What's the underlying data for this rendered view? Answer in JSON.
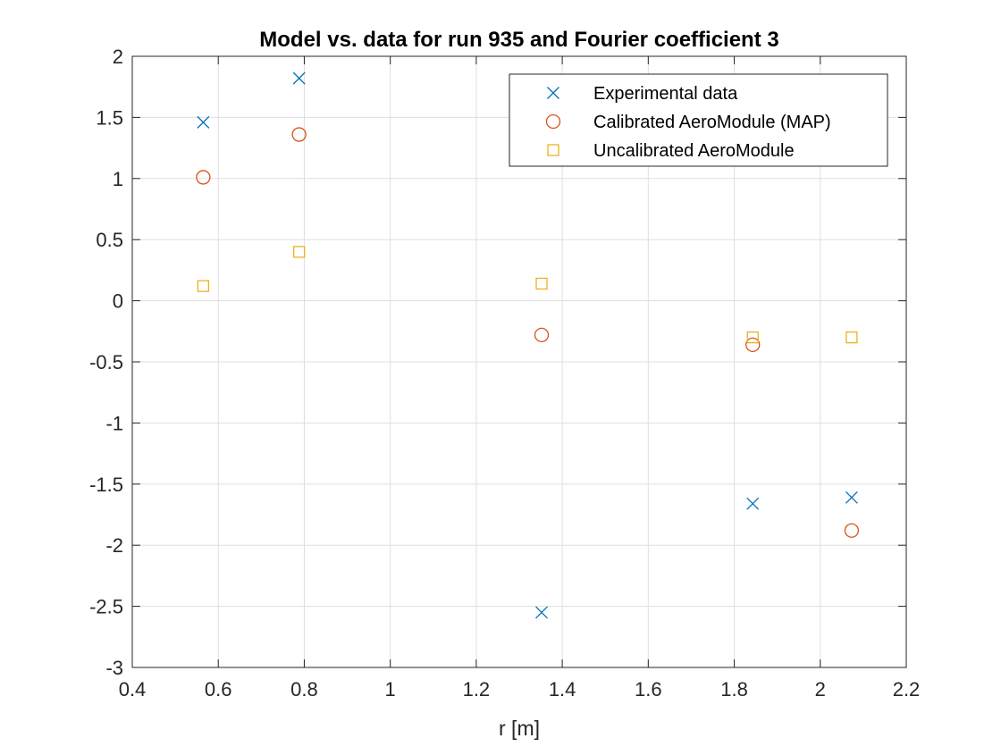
{
  "chart_data": {
    "type": "scatter",
    "title": "Model vs. data for run 935 and Fourier coefficient 3",
    "xlabel": "r [m]",
    "ylabel": "",
    "xlim": [
      0.4,
      2.2
    ],
    "ylim": [
      -3,
      2
    ],
    "xticks": [
      0.4,
      0.6,
      0.8,
      1,
      1.2,
      1.4,
      1.6,
      1.8,
      2,
      2.2
    ],
    "yticks": [
      -3,
      -2.5,
      -2,
      -1.5,
      -1,
      -0.5,
      0,
      0.5,
      1,
      1.5,
      2
    ],
    "xtick_labels": [
      "0.4",
      "0.6",
      "0.8",
      "1",
      "1.2",
      "1.4",
      "1.6",
      "1.8",
      "2",
      "2.2"
    ],
    "ytick_labels": [
      "-3",
      "-2.5",
      "-2",
      "-1.5",
      "-1",
      "-0.5",
      "0",
      "0.5",
      "1",
      "1.5",
      "2"
    ],
    "grid": true,
    "legend_position": "top-right",
    "series": [
      {
        "name": "Experimental data",
        "marker": "x",
        "color": "#0072BD",
        "x": [
          0.565,
          0.788,
          1.352,
          1.843,
          2.073
        ],
        "y": [
          1.46,
          1.82,
          -2.55,
          -1.66,
          -1.61
        ]
      },
      {
        "name": "Calibrated AeroModule (MAP)",
        "marker": "circle",
        "color": "#D95319",
        "x": [
          0.565,
          0.788,
          1.352,
          1.843,
          2.073
        ],
        "y": [
          1.01,
          1.36,
          -0.28,
          -0.36,
          -1.88
        ]
      },
      {
        "name": "Uncalibrated AeroModule",
        "marker": "square",
        "color": "#EDB120",
        "x": [
          0.565,
          0.788,
          1.352,
          1.843,
          2.073
        ],
        "y": [
          0.12,
          0.4,
          0.14,
          -0.3,
          -0.3
        ]
      }
    ]
  }
}
